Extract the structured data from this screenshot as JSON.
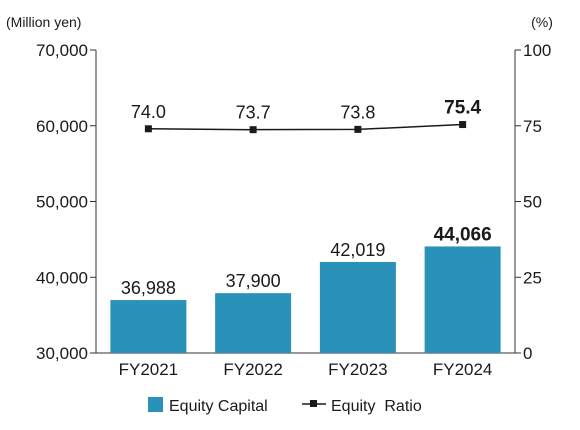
{
  "chart_data": {
    "type": "bar",
    "categories": [
      "FY2021",
      "FY2022",
      "FY2023",
      "FY2024"
    ],
    "series": [
      {
        "name": "Equity Capital",
        "type": "bar",
        "axis": "left",
        "values": [
          36988,
          37900,
          42019,
          44066
        ],
        "labels": [
          "36,988",
          "37,900",
          "42,019",
          "44,066"
        ],
        "color": "#2a92b9"
      },
      {
        "name": "Equity  Ratio",
        "type": "line",
        "axis": "right",
        "values": [
          74.0,
          73.7,
          73.8,
          75.4
        ],
        "labels": [
          "74.0",
          "73.7",
          "73.8",
          "75.4"
        ],
        "color": "#1a1a1a"
      }
    ],
    "y_left": {
      "unit": "(Million yen)",
      "min": 30000,
      "max": 70000,
      "ticks": [
        30000,
        40000,
        50000,
        60000,
        70000
      ],
      "tick_labels": [
        "30,000",
        "40,000",
        "50,000",
        "60,000",
        "70,000"
      ]
    },
    "y_right": {
      "unit": "(%)",
      "min": 0,
      "max": 100,
      "ticks": [
        0,
        25,
        50,
        75,
        100
      ],
      "tick_labels": [
        "0",
        "25",
        "50",
        "75",
        "100"
      ]
    },
    "highlight_index": 3,
    "grid": false,
    "legend_position": "bottom"
  }
}
